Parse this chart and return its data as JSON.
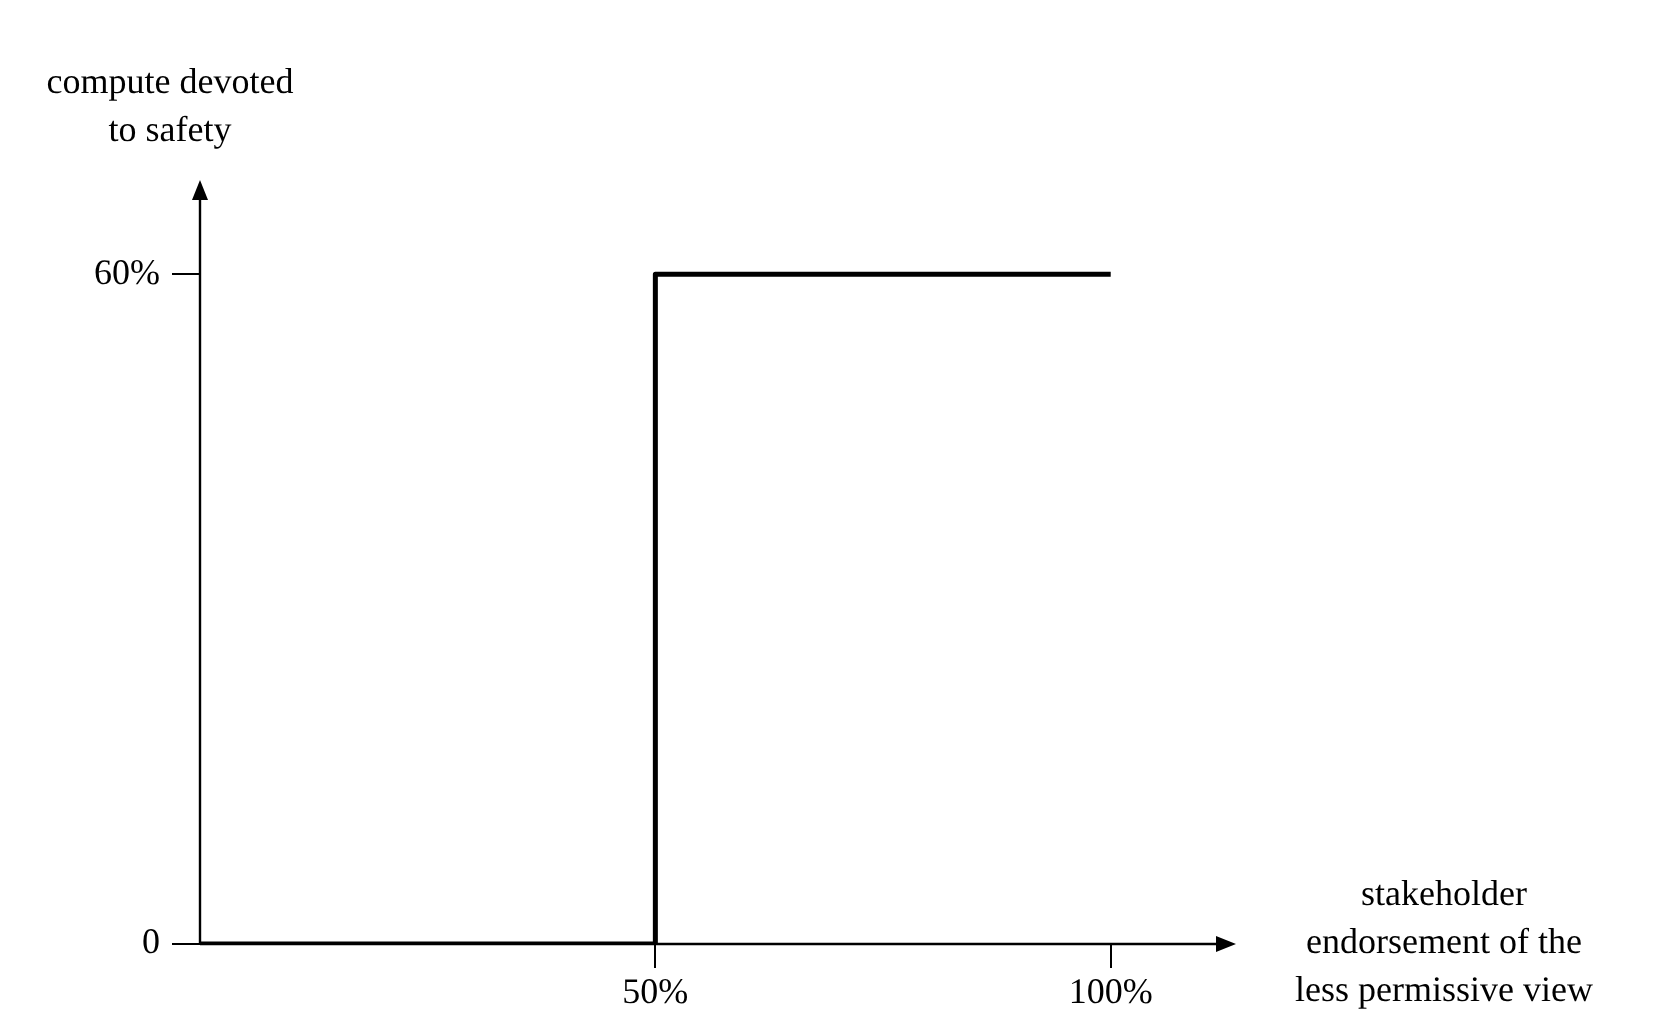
{
  "chart_data": {
    "type": "step",
    "xlabel": "stakeholder\nendorsement of the\nless permissive view",
    "ylabel": "compute devoted\nto safety",
    "x": [
      0,
      50,
      100
    ],
    "values": [
      0,
      60,
      60
    ],
    "color": "#000000",
    "xlim": [
      0,
      112
    ],
    "ylim": [
      0,
      67
    ],
    "xticks": [
      {
        "value": 50,
        "label": "50%"
      },
      {
        "value": 100,
        "label": "100%"
      }
    ],
    "yticks": [
      0,
      {
        "value": 60,
        "label": "60%"
      }
    ],
    "grid": false,
    "legend": false,
    "marker": "none",
    "line_style": "solid"
  }
}
